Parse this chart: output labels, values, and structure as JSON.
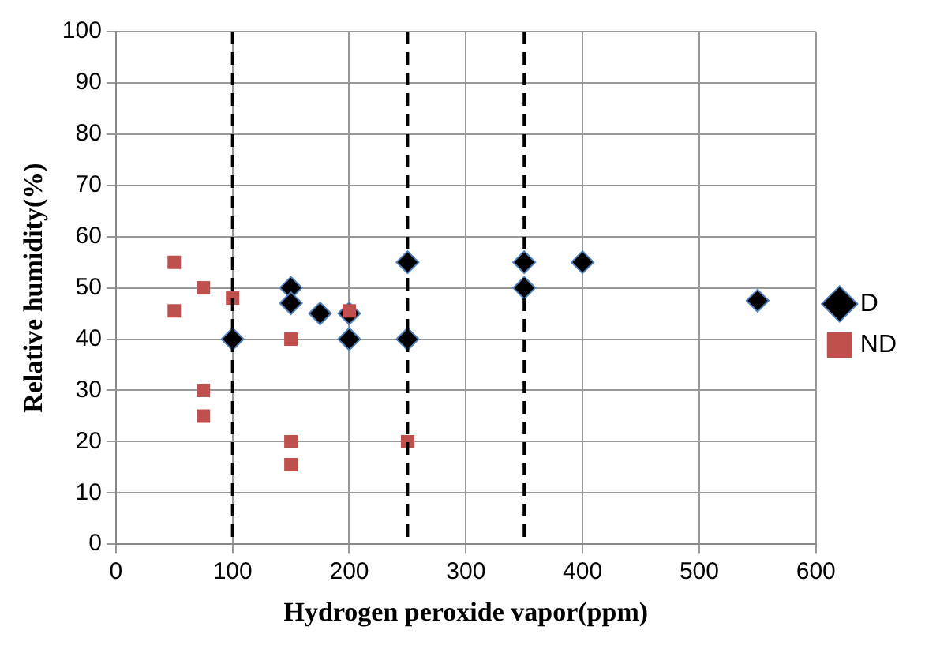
{
  "chart_data": {
    "type": "scatter",
    "xlabel": "Hydrogen peroxide vapor(ppm)",
    "ylabel": "Relative humidity(%)",
    "xlim": [
      0,
      600
    ],
    "xticks": [
      0,
      100,
      200,
      300,
      400,
      500,
      600
    ],
    "ylim": [
      0,
      100
    ],
    "yticks": [
      0,
      10,
      20,
      30,
      40,
      50,
      60,
      70,
      80,
      90,
      100
    ],
    "grid": true,
    "legend": "right",
    "ref_lines": [
      {
        "axis": "x",
        "value": 100,
        "line_style": "dashed",
        "color": "#000000"
      },
      {
        "axis": "x",
        "value": 250,
        "line_style": "dashed",
        "color": "#000000"
      },
      {
        "axis": "x",
        "value": 350,
        "line_style": "dashed",
        "color": "#000000"
      }
    ],
    "series": [
      {
        "name": "D",
        "color": "#000000",
        "marker": "diamond",
        "x": [
          100,
          150,
          150,
          175,
          200,
          200,
          250,
          250,
          350,
          350,
          400,
          550
        ],
        "values": [
          40,
          50,
          47,
          45,
          45,
          40,
          55,
          40,
          55,
          50,
          55,
          47.5
        ]
      },
      {
        "name": "ND",
        "color": "#c0504d",
        "marker": "square",
        "x": [
          50,
          50,
          75,
          75,
          75,
          100,
          150,
          150,
          150,
          200,
          250
        ],
        "values": [
          55,
          45.5,
          50,
          30,
          25,
          48,
          40,
          20,
          15.5,
          45.5,
          20
        ]
      }
    ]
  }
}
